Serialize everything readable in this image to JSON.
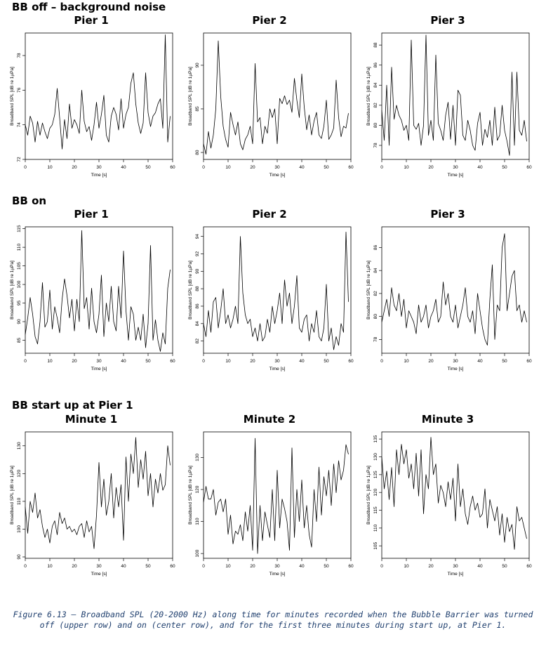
{
  "rows": [
    {
      "title": "BB off – background noise"
    },
    {
      "title": "BB on"
    },
    {
      "title": "BB start up at Pier 1"
    }
  ],
  "caption": "Figure 6.13 – Broadband SPL (20-2000 Hz) along time for minutes recorded when the Bubble Barrier was turned off (upper row) and on (center row), and for the first three minutes during start up, at Pier 1.",
  "chart_data": [
    {
      "type": "line",
      "title": "Pier 1",
      "xlabel": "Time [s]",
      "ylabel": "Broadband SPL [dB re 1µPa]",
      "xlim": [
        0,
        60
      ],
      "ylim": [
        72,
        79.3
      ],
      "xticks": [
        0,
        10,
        20,
        30,
        40,
        50,
        60
      ],
      "yticks": [
        72,
        74,
        76,
        78
      ],
      "x": [
        0,
        1,
        2,
        3,
        4,
        5,
        6,
        7,
        8,
        9,
        10,
        11,
        12,
        13,
        14,
        15,
        16,
        17,
        18,
        19,
        20,
        21,
        22,
        23,
        24,
        25,
        26,
        27,
        28,
        29,
        30,
        31,
        32,
        33,
        34,
        35,
        36,
        37,
        38,
        39,
        40,
        41,
        42,
        43,
        44,
        45,
        46,
        47,
        48,
        49,
        50,
        51,
        52,
        53,
        54,
        55,
        56,
        57,
        58,
        59
      ],
      "y": [
        74.0,
        73.4,
        74.5,
        74.1,
        73.0,
        74.2,
        73.4,
        74.1,
        73.6,
        73.2,
        73.8,
        74.0,
        74.6,
        76.1,
        74.4,
        72.6,
        74.3,
        73.2,
        75.2,
        73.8,
        74.3,
        74.0,
        73.5,
        76.0,
        74.2,
        73.6,
        73.9,
        73.1,
        74.0,
        75.3,
        73.8,
        74.6,
        75.7,
        73.4,
        73.0,
        74.5,
        75.0,
        74.6,
        73.7,
        75.5,
        73.8,
        74.6,
        75.0,
        76.4,
        77.0,
        75.2,
        74.1,
        73.5,
        74.1,
        77.0,
        74.7,
        73.9,
        74.5,
        74.7,
        75.2,
        75.5,
        73.8,
        79.2,
        73.0,
        74.5
      ]
    },
    {
      "type": "line",
      "title": "Pier 2",
      "xlabel": "Time [s]",
      "ylabel": "Broadband SPL [dB re 1µPa]",
      "xlim": [
        0,
        60
      ],
      "ylim": [
        79.2,
        93.7
      ],
      "xticks": [
        0,
        10,
        20,
        30,
        40,
        50,
        60
      ],
      "yticks": [
        80,
        85,
        90
      ],
      "x": [
        0,
        1,
        2,
        3,
        4,
        5,
        6,
        7,
        8,
        9,
        10,
        11,
        12,
        13,
        14,
        15,
        16,
        17,
        18,
        19,
        20,
        21,
        22,
        23,
        24,
        25,
        26,
        27,
        28,
        29,
        30,
        31,
        32,
        33,
        34,
        35,
        36,
        37,
        38,
        39,
        40,
        41,
        42,
        43,
        44,
        45,
        46,
        47,
        48,
        49,
        50,
        51,
        52,
        53,
        54,
        55,
        56,
        57,
        58,
        59
      ],
      "y": [
        81.0,
        79.8,
        82.4,
        80.5,
        82.0,
        85.0,
        92.8,
        86.4,
        83.0,
        81.5,
        80.6,
        84.6,
        83.2,
        82.0,
        83.5,
        81.0,
        80.3,
        81.5,
        82.0,
        83.0,
        81.0,
        90.2,
        83.5,
        84.0,
        81.0,
        83.0,
        82.2,
        85.0,
        84.0,
        85.0,
        81.0,
        86.2,
        85.6,
        86.5,
        85.5,
        86.0,
        84.6,
        88.5,
        86.0,
        84.0,
        89.0,
        85.2,
        82.6,
        84.3,
        82.0,
        83.6,
        84.6,
        82.0,
        81.6,
        83.0,
        86.0,
        81.5,
        82.0,
        82.8,
        88.3,
        84.0,
        81.8,
        83.0,
        82.8,
        84.5
      ]
    },
    {
      "type": "line",
      "title": "Pier 3",
      "xlabel": "Time [s]",
      "ylabel": "Broadband SPL [dB re 1µPa]",
      "xlim": [
        0,
        60
      ],
      "ylim": [
        76.6,
        89.2
      ],
      "xticks": [
        0,
        10,
        20,
        30,
        40,
        50,
        60
      ],
      "yticks": [
        78,
        80,
        82,
        84,
        86,
        88
      ],
      "x": [
        0,
        1,
        2,
        3,
        4,
        5,
        6,
        7,
        8,
        9,
        10,
        11,
        12,
        13,
        14,
        15,
        16,
        17,
        18,
        19,
        20,
        21,
        22,
        23,
        24,
        25,
        26,
        27,
        28,
        29,
        30,
        31,
        32,
        33,
        34,
        35,
        36,
        37,
        38,
        39,
        40,
        41,
        42,
        43,
        44,
        45,
        46,
        47,
        48,
        49,
        50,
        51,
        52,
        53,
        54,
        55,
        56,
        57,
        58,
        59
      ],
      "y": [
        81.5,
        78.5,
        84.0,
        78.0,
        85.8,
        80.6,
        82.0,
        81.0,
        80.5,
        79.5,
        80.0,
        78.5,
        88.5,
        80.0,
        79.6,
        80.2,
        78.0,
        80.0,
        89.0,
        79.0,
        80.5,
        78.5,
        87.0,
        80.2,
        79.5,
        78.5,
        81.0,
        82.3,
        78.6,
        82.0,
        78.0,
        83.5,
        83.0,
        79.0,
        78.5,
        80.5,
        79.5,
        78.0,
        77.5,
        80.2,
        81.3,
        78.0,
        79.6,
        78.8,
        80.5,
        78.0,
        81.8,
        78.5,
        79.0,
        82.0,
        79.5,
        78.4,
        77.0,
        85.3,
        78.0,
        85.3,
        79.5,
        79.0,
        80.5,
        78.4
      ]
    },
    {
      "type": "line",
      "title": "Pier 1",
      "xlabel": "Time [s]",
      "ylabel": "Broadband SPL [dB re 1µPa]",
      "xlim": [
        0,
        60
      ],
      "ylim": [
        81.5,
        115.5
      ],
      "xticks": [
        0,
        10,
        20,
        30,
        40,
        50,
        60
      ],
      "yticks": [
        85,
        90,
        95,
        100,
        105,
        110,
        115
      ],
      "x": [
        0,
        1,
        2,
        3,
        4,
        5,
        6,
        7,
        8,
        9,
        10,
        11,
        12,
        13,
        14,
        15,
        16,
        17,
        18,
        19,
        20,
        21,
        22,
        23,
        24,
        25,
        26,
        27,
        28,
        29,
        30,
        31,
        32,
        33,
        34,
        35,
        36,
        37,
        38,
        39,
        40,
        41,
        42,
        43,
        44,
        45,
        46,
        47,
        48,
        49,
        50,
        51,
        52,
        53,
        54,
        55,
        56,
        57,
        58,
        59
      ],
      "y": [
        86.5,
        91.0,
        96.5,
        92.0,
        86.0,
        84.0,
        90.0,
        100.5,
        88.5,
        90.0,
        98.5,
        88.0,
        94.0,
        91.0,
        87.0,
        96.0,
        101.5,
        97.0,
        91.0,
        96.0,
        87.5,
        96.0,
        90.0,
        114.5,
        93.5,
        96.5,
        88.0,
        99.0,
        90.0,
        87.0,
        92.0,
        102.5,
        86.0,
        95.0,
        90.0,
        99.5,
        90.0,
        87.5,
        99.5,
        91.0,
        109.0,
        93.0,
        85.0,
        94.0,
        92.0,
        85.0,
        88.5,
        85.0,
        92.0,
        83.0,
        89.5,
        110.5,
        85.0,
        90.5,
        85.0,
        82.0,
        87.0,
        84.0,
        99.0,
        104.0
      ]
    },
    {
      "type": "line",
      "title": "Pier 2",
      "xlabel": "Time [s]",
      "ylabel": "Broadband SPL [dB re 1µPa]",
      "xlim": [
        0,
        60
      ],
      "ylim": [
        80.6,
        95.1
      ],
      "xticks": [
        0,
        10,
        20,
        30,
        40,
        50,
        60
      ],
      "yticks": [
        82,
        84,
        86,
        88,
        90,
        92,
        94
      ],
      "x": [
        0,
        1,
        2,
        3,
        4,
        5,
        6,
        7,
        8,
        9,
        10,
        11,
        12,
        13,
        14,
        15,
        16,
        17,
        18,
        19,
        20,
        21,
        22,
        23,
        24,
        25,
        26,
        27,
        28,
        29,
        30,
        31,
        32,
        33,
        34,
        35,
        36,
        37,
        38,
        39,
        40,
        41,
        42,
        43,
        44,
        45,
        46,
        47,
        48,
        49,
        50,
        51,
        52,
        53,
        54,
        55,
        56,
        57,
        58,
        59
      ],
      "y": [
        84.0,
        82.5,
        85.5,
        83.0,
        86.5,
        87.0,
        83.5,
        85.5,
        88.0,
        84.0,
        85.0,
        83.5,
        84.5,
        86.0,
        84.0,
        94.0,
        87.5,
        85.0,
        84.0,
        84.5,
        82.5,
        83.5,
        82.0,
        84.0,
        82.0,
        82.5,
        84.5,
        83.0,
        86.0,
        84.0,
        85.5,
        87.5,
        84.0,
        89.0,
        86.0,
        87.5,
        84.0,
        86.0,
        89.5,
        83.5,
        83.0,
        84.5,
        85.0,
        82.0,
        84.0,
        83.0,
        85.5,
        82.5,
        82.0,
        83.5,
        88.5,
        82.0,
        83.5,
        81.0,
        82.5,
        81.5,
        84.0,
        83.0,
        94.5,
        86.5
      ]
    },
    {
      "type": "line",
      "title": "Pier 3",
      "xlabel": "Time [s]",
      "ylabel": "Broadband SPL [dB re 1µPa]",
      "xlim": [
        0,
        60
      ],
      "ylim": [
        76.8,
        87.8
      ],
      "xticks": [
        0,
        10,
        20,
        30,
        40,
        50,
        60
      ],
      "yticks": [
        78,
        80,
        82,
        84,
        86
      ],
      "x": [
        0,
        1,
        2,
        3,
        4,
        5,
        6,
        7,
        8,
        9,
        10,
        11,
        12,
        13,
        14,
        15,
        16,
        17,
        18,
        19,
        20,
        21,
        22,
        23,
        24,
        25,
        26,
        27,
        28,
        29,
        30,
        31,
        32,
        33,
        34,
        35,
        36,
        37,
        38,
        39,
        40,
        41,
        42,
        43,
        44,
        45,
        46,
        47,
        48,
        49,
        50,
        51,
        52,
        53,
        54,
        55,
        56,
        57,
        58,
        59
      ],
      "y": [
        79.5,
        80.5,
        81.5,
        80.0,
        82.5,
        81.0,
        80.5,
        82.0,
        80.0,
        81.5,
        79.0,
        80.5,
        80.0,
        79.5,
        78.5,
        81.0,
        79.5,
        80.0,
        81.0,
        79.0,
        80.0,
        80.5,
        81.5,
        79.5,
        80.0,
        83.0,
        81.0,
        82.0,
        80.0,
        79.5,
        81.0,
        79.0,
        80.0,
        81.0,
        82.5,
        80.0,
        79.5,
        80.5,
        78.5,
        82.0,
        80.5,
        79.0,
        78.0,
        77.5,
        81.5,
        84.5,
        78.0,
        81.0,
        80.5,
        86.0,
        87.2,
        80.5,
        82.0,
        83.5,
        84.0,
        80.5,
        81.0,
        79.5,
        80.5,
        79.5
      ]
    },
    {
      "type": "line",
      "title": "Minute 1",
      "xlabel": "Time [s]",
      "ylabel": "Broadband SPL [dB re 1µPa]",
      "xlim": [
        0,
        60
      ],
      "ylim": [
        89.5,
        135
      ],
      "xticks": [
        0,
        10,
        20,
        30,
        40,
        50,
        60
      ],
      "yticks": [
        90,
        100,
        110,
        120,
        130
      ],
      "x": [
        0,
        1,
        2,
        3,
        4,
        5,
        6,
        7,
        8,
        9,
        10,
        11,
        12,
        13,
        14,
        15,
        16,
        17,
        18,
        19,
        20,
        21,
        22,
        23,
        24,
        25,
        26,
        27,
        28,
        29,
        30,
        31,
        32,
        33,
        34,
        35,
        36,
        37,
        38,
        39,
        40,
        41,
        42,
        43,
        44,
        45,
        46,
        47,
        48,
        49,
        50,
        51,
        52,
        53,
        54,
        55,
        56,
        57,
        58,
        59
      ],
      "y": [
        108.0,
        98.5,
        110.0,
        106.0,
        113.0,
        104.0,
        107.0,
        101.0,
        97.0,
        100.0,
        95.0,
        101.0,
        103.0,
        98.0,
        106.0,
        102.0,
        104.0,
        100.0,
        101.0,
        99.0,
        100.0,
        98.0,
        101.0,
        102.0,
        97.0,
        103.0,
        99.0,
        101.0,
        93.0,
        105.0,
        124.0,
        108.0,
        118.0,
        105.0,
        110.0,
        120.0,
        104.0,
        115.0,
        108.0,
        116.0,
        96.0,
        126.0,
        110.0,
        127.0,
        120.0,
        133.0,
        115.0,
        125.0,
        118.0,
        128.0,
        112.0,
        120.0,
        108.0,
        118.0,
        113.0,
        120.0,
        114.0,
        116.0,
        130.0,
        123.0
      ]
    },
    {
      "type": "line",
      "title": "Minute 2",
      "xlabel": "Time [s]",
      "ylabel": "Broadband SPL [dB re 1µPa]",
      "xlim": [
        0,
        60
      ],
      "ylim": [
        98.5,
        138
      ],
      "xticks": [
        0,
        10,
        20,
        30,
        40,
        50,
        60
      ],
      "yticks": [
        100,
        110,
        120,
        130
      ],
      "x": [
        0,
        1,
        2,
        3,
        4,
        5,
        6,
        7,
        8,
        9,
        10,
        11,
        12,
        13,
        14,
        15,
        16,
        17,
        18,
        19,
        20,
        21,
        22,
        23,
        24,
        25,
        26,
        27,
        28,
        29,
        30,
        31,
        32,
        33,
        34,
        35,
        36,
        37,
        38,
        39,
        40,
        41,
        42,
        43,
        44,
        45,
        46,
        47,
        48,
        49,
        50,
        51,
        52,
        53,
        54,
        55,
        56,
        57,
        58,
        59
      ],
      "y": [
        116.0,
        121.0,
        117.0,
        117.0,
        120.0,
        112.0,
        116.0,
        117.0,
        113.0,
        117.0,
        106.0,
        112.0,
        103.0,
        107.0,
        106.0,
        109.0,
        104.0,
        113.0,
        107.0,
        115.0,
        101.0,
        136.0,
        100.0,
        115.0,
        104.0,
        113.0,
        109.0,
        105.0,
        120.0,
        104.0,
        126.0,
        108.0,
        117.0,
        114.0,
        110.0,
        101.0,
        133.0,
        105.0,
        120.0,
        110.0,
        123.0,
        108.0,
        115.0,
        106.0,
        102.0,
        120.0,
        110.0,
        127.0,
        112.0,
        124.0,
        118.0,
        126.0,
        115.0,
        128.0,
        119.0,
        129.0,
        123.0,
        126.0,
        134.0,
        131.0
      ]
    },
    {
      "type": "line",
      "title": "Minute 3",
      "xlabel": "Time [s]",
      "ylabel": "Broadband SPL [dB re 1µPa]",
      "xlim": [
        0,
        60
      ],
      "ylim": [
        101.5,
        137
      ],
      "xticks": [
        0,
        10,
        20,
        30,
        40,
        50,
        60
      ],
      "yticks": [
        105,
        110,
        115,
        120,
        125,
        130,
        135
      ],
      "x": [
        0,
        1,
        2,
        3,
        4,
        5,
        6,
        7,
        8,
        9,
        10,
        11,
        12,
        13,
        14,
        15,
        16,
        17,
        18,
        19,
        20,
        21,
        22,
        23,
        24,
        25,
        26,
        27,
        28,
        29,
        30,
        31,
        32,
        33,
        34,
        35,
        36,
        37,
        38,
        39,
        40,
        41,
        42,
        43,
        44,
        45,
        46,
        47,
        48,
        49,
        50,
        51,
        52,
        53,
        54,
        55,
        56,
        57,
        58,
        59
      ],
      "y": [
        130.0,
        121.0,
        126.0,
        118.0,
        127.0,
        116.0,
        132.0,
        125.0,
        133.5,
        128.0,
        132.0,
        124.0,
        128.0,
        121.0,
        131.0,
        119.0,
        132.0,
        114.0,
        125.0,
        121.0,
        135.5,
        125.0,
        128.0,
        117.0,
        122.0,
        120.0,
        116.0,
        123.0,
        118.0,
        124.0,
        112.0,
        128.0,
        116.0,
        121.0,
        114.0,
        111.0,
        116.0,
        119.0,
        115.0,
        117.0,
        113.0,
        114.0,
        121.0,
        110.0,
        118.0,
        115.0,
        112.0,
        116.0,
        108.0,
        114.0,
        106.0,
        113.0,
        109.0,
        111.0,
        104.0,
        116.0,
        112.0,
        113.0,
        110.0,
        107.0
      ]
    }
  ]
}
